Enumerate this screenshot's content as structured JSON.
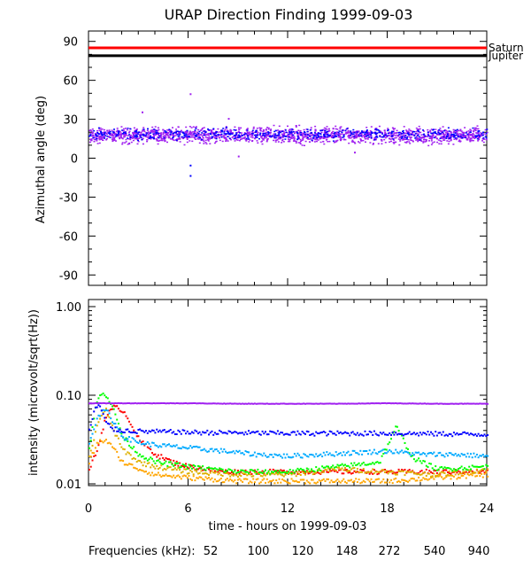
{
  "chart_data": [
    {
      "type": "scatter",
      "title": "URAP Direction Finding  1999-09-03",
      "ylabel": "Azimuthal angle (deg)",
      "ylim": [
        -90,
        90
      ],
      "xlim": [
        0,
        24
      ],
      "yticks": [
        -90,
        -60,
        -30,
        0,
        30,
        60,
        90
      ],
      "reference_lines": [
        {
          "name": "Saturn",
          "y": 85,
          "color": "#ff0000"
        },
        {
          "name": "Jupiter",
          "y": 79,
          "color": "#000000"
        }
      ],
      "series": [
        {
          "name": "940",
          "color": "#a020f0",
          "band": {
            "x": [
              0,
              24
            ],
            "y_center": 18,
            "y_spread": [
              9,
              27
            ]
          },
          "outliers": [
            {
              "x": 6.1,
              "y": 50
            },
            {
              "x": 3.2,
              "y": 36
            },
            {
              "x": 8.4,
              "y": 31
            },
            {
              "x": 16.0,
              "y": 5
            },
            {
              "x": 9.0,
              "y": 2
            }
          ]
        },
        {
          "name": "540",
          "color": "#0000ff",
          "band": {
            "x": [
              0,
              24
            ],
            "y_center": 19,
            "y_spread": [
              13,
              25
            ]
          },
          "outliers": [
            {
              "x": 6.1,
              "y": -5
            },
            {
              "x": 6.1,
              "y": -13
            }
          ]
        }
      ]
    },
    {
      "type": "line",
      "ylabel": "intensity (microvolt/sqrt(Hz))",
      "xlabel": "time - hours on 1999-09-03",
      "xlim": [
        0,
        24
      ],
      "xticks": [
        "0",
        "6",
        "12",
        "18",
        "24"
      ],
      "yscale": "log",
      "ylim": [
        0.01,
        1.0
      ],
      "yticks": [
        "0.01",
        "0.10",
        "1.00"
      ],
      "series": [
        {
          "name": "52",
          "color": "#ff0000",
          "x": [
            0,
            0.5,
            1.0,
            1.5,
            2.0,
            2.5,
            3.0,
            4.0,
            5.0,
            6.0,
            8.0,
            12.0,
            16.0,
            20.0,
            24.0
          ],
          "y": [
            0.015,
            0.025,
            0.06,
            0.075,
            0.07,
            0.05,
            0.032,
            0.022,
            0.018,
            0.016,
            0.014,
            0.014,
            0.014,
            0.014,
            0.014
          ]
        },
        {
          "name": "100",
          "color": "#ffa500",
          "x": [
            0,
            0.5,
            1.0,
            1.5,
            2.0,
            3.0,
            4.0,
            6.0,
            9.0,
            12.0,
            15.0,
            18.0,
            21.0,
            24.0
          ],
          "y": [
            0.018,
            0.03,
            0.032,
            0.025,
            0.018,
            0.015,
            0.013,
            0.012,
            0.011,
            0.011,
            0.011,
            0.011,
            0.012,
            0.013
          ]
        },
        {
          "name": "120",
          "color": "#ddb000",
          "x": [
            0,
            0.5,
            1.0,
            1.5,
            2.0,
            3.0,
            4.0,
            6.0,
            9.0,
            12.0,
            15.0,
            18.0,
            21.0,
            24.0
          ],
          "y": [
            0.02,
            0.05,
            0.07,
            0.04,
            0.025,
            0.018,
            0.016,
            0.014,
            0.013,
            0.013,
            0.015,
            0.014,
            0.013,
            0.015
          ]
        },
        {
          "name": "148",
          "color": "#00ff00",
          "x": [
            0,
            0.4,
            0.8,
            1.2,
            1.6,
            2.0,
            3.0,
            4.0,
            6.0,
            9.0,
            12.0,
            15.0,
            17.5,
            18.5,
            19.5,
            21.0,
            24.0
          ],
          "y": [
            0.025,
            0.08,
            0.115,
            0.09,
            0.06,
            0.035,
            0.022,
            0.018,
            0.016,
            0.014,
            0.014,
            0.016,
            0.018,
            0.045,
            0.02,
            0.015,
            0.016
          ]
        },
        {
          "name": "272",
          "color": "#00aaff",
          "x": [
            0,
            0.5,
            1.0,
            1.5,
            2.0,
            3.0,
            4.0,
            6.0,
            8.0,
            10.0,
            12.0,
            14.0,
            16.0,
            18.0,
            20.0,
            22.0,
            24.0
          ],
          "y": [
            0.03,
            0.06,
            0.07,
            0.05,
            0.035,
            0.03,
            0.028,
            0.026,
            0.024,
            0.022,
            0.021,
            0.022,
            0.023,
            0.024,
            0.022,
            0.022,
            0.021
          ]
        },
        {
          "name": "540",
          "color": "#0000ff",
          "x": [
            0,
            0.3,
            0.6,
            1.0,
            1.5,
            2.0,
            3.0,
            6.0,
            12.0,
            18.0,
            24.0
          ],
          "y": [
            0.04,
            0.07,
            0.08,
            0.05,
            0.042,
            0.041,
            0.04,
            0.039,
            0.038,
            0.038,
            0.037
          ]
        },
        {
          "name": "940",
          "color": "#a020f0",
          "x": [
            0,
            3,
            6,
            9,
            12,
            15,
            18,
            21,
            24
          ],
          "y": [
            0.083,
            0.083,
            0.083,
            0.082,
            0.082,
            0.082,
            0.083,
            0.082,
            0.082
          ]
        }
      ]
    }
  ],
  "legend": {
    "label": "Frequencies (kHz):",
    "items": [
      {
        "text": "52",
        "color": "#ff0000"
      },
      {
        "text": "100",
        "color": "#ffa500"
      },
      {
        "text": "120",
        "color": "#ddb000"
      },
      {
        "text": "148",
        "color": "#00ff00"
      },
      {
        "text": "272",
        "color": "#00aaff"
      },
      {
        "text": "540",
        "color": "#0000ff"
      },
      {
        "text": "940",
        "color": "#a020f0"
      }
    ]
  }
}
